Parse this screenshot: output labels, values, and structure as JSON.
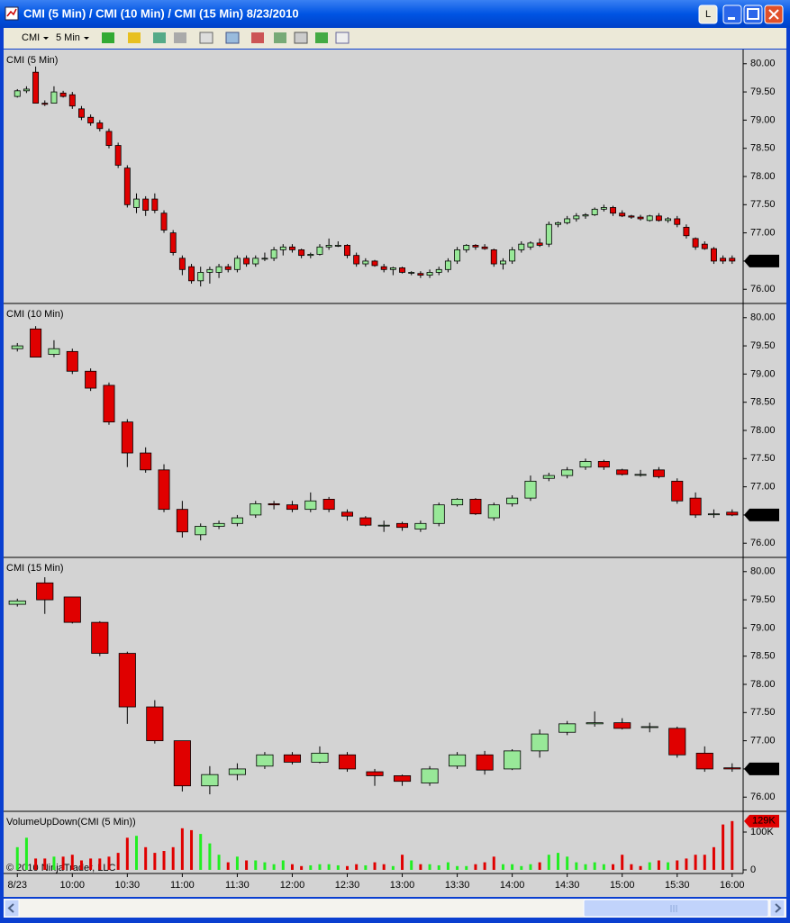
{
  "window": {
    "title": "CMI (5 Min) / CMI (10 Min) / CMI (15 Min)  8/23/2010",
    "button": "L"
  },
  "toolbar": {
    "instrument": "CMI",
    "interval": "5 Min"
  },
  "time_axis": {
    "xlim": [
      "9:23",
      "16:06"
    ],
    "xticks": [
      {
        "value": "9:30",
        "label": "8/23"
      },
      "10:00",
      "10:30",
      "11:00",
      "11:30",
      "12:00",
      "12:30",
      "13:00",
      "13:30",
      "14:00",
      "14:30",
      "15:00",
      "15:30",
      "16:00"
    ]
  },
  "copyright": "© 2010 NinjaTrader, LLC",
  "chart_data": [
    {
      "type": "candlestick",
      "title": "CMI (5 Min)",
      "up_color": "#98e898",
      "down_color": "#e00000",
      "ylim": [
        75.78,
        80.22
      ],
      "yticks": [
        {
          "value": 76,
          "label": "76.00"
        },
        {
          "value": 76.5,
          "label": "76.50"
        },
        {
          "value": 77,
          "label": "77.00"
        },
        {
          "value": 77.5,
          "label": "77.50"
        },
        {
          "value": 78,
          "label": "78.00"
        },
        {
          "value": 78.5,
          "label": "78.50"
        },
        {
          "value": 79,
          "label": "79.00"
        },
        {
          "value": 79.5,
          "label": "79.50"
        },
        {
          "value": 80,
          "label": "80.00"
        }
      ],
      "last_value": {
        "value": 76.5,
        "label": "76.50"
      },
      "x": [
        "9:30",
        "9:35",
        "9:40",
        "9:45",
        "9:50",
        "9:55",
        "10:00",
        "10:05",
        "10:10",
        "10:15",
        "10:20",
        "10:25",
        "10:30",
        "10:35",
        "10:40",
        "10:45",
        "10:50",
        "10:55",
        "11:00",
        "11:05",
        "11:10",
        "11:15",
        "11:20",
        "11:25",
        "11:30",
        "11:35",
        "11:40",
        "11:45",
        "11:50",
        "11:55",
        "12:00",
        "12:05",
        "12:10",
        "12:15",
        "12:20",
        "12:25",
        "12:30",
        "12:35",
        "12:40",
        "12:45",
        "12:50",
        "12:55",
        "13:00",
        "13:05",
        "13:10",
        "13:15",
        "13:20",
        "13:25",
        "13:30",
        "13:35",
        "13:40",
        "13:45",
        "13:50",
        "13:55",
        "14:00",
        "14:05",
        "14:10",
        "14:15",
        "14:20",
        "14:25",
        "14:30",
        "14:35",
        "14:40",
        "14:45",
        "14:50",
        "14:55",
        "15:00",
        "15:05",
        "15:10",
        "15:15",
        "15:20",
        "15:25",
        "15:30",
        "15:35",
        "15:40",
        "15:45",
        "15:50",
        "15:55",
        "16:00"
      ],
      "open": [
        79.42,
        79.52,
        79.85,
        79.3,
        79.3,
        79.48,
        79.45,
        79.2,
        79.05,
        78.95,
        78.8,
        78.55,
        78.15,
        77.45,
        77.6,
        77.6,
        77.35,
        77.0,
        76.55,
        76.4,
        76.15,
        76.3,
        76.3,
        76.4,
        76.35,
        76.55,
        76.45,
        76.55,
        76.55,
        76.7,
        76.75,
        76.7,
        76.6,
        76.62,
        76.75,
        76.78,
        76.78,
        76.6,
        76.45,
        76.5,
        76.4,
        76.35,
        76.38,
        76.3,
        76.28,
        76.25,
        76.3,
        76.35,
        76.5,
        76.7,
        76.78,
        76.75,
        76.7,
        76.45,
        76.5,
        76.7,
        76.75,
        76.82,
        76.8,
        77.15,
        77.18,
        77.25,
        77.3,
        77.32,
        77.42,
        77.45,
        77.35,
        77.3,
        77.28,
        77.22,
        77.3,
        77.22,
        77.25,
        77.1,
        76.9,
        76.8,
        76.72,
        76.55,
        76.55
      ],
      "high": [
        79.55,
        79.6,
        79.95,
        79.35,
        79.6,
        79.52,
        79.5,
        79.25,
        79.1,
        79.0,
        78.85,
        78.6,
        78.2,
        77.7,
        77.65,
        77.7,
        77.4,
        77.05,
        76.6,
        76.45,
        76.4,
        76.4,
        76.45,
        76.45,
        76.6,
        76.6,
        76.6,
        76.65,
        76.75,
        76.8,
        76.8,
        76.72,
        76.65,
        76.8,
        76.9,
        76.85,
        76.8,
        76.65,
        76.55,
        76.52,
        76.45,
        76.4,
        76.4,
        76.32,
        76.32,
        76.35,
        76.4,
        76.55,
        76.75,
        76.8,
        76.8,
        76.8,
        76.72,
        76.55,
        76.75,
        76.85,
        76.85,
        76.9,
        77.2,
        77.2,
        77.3,
        77.35,
        77.35,
        77.45,
        77.5,
        77.48,
        77.4,
        77.32,
        77.32,
        77.32,
        77.35,
        77.28,
        77.3,
        77.15,
        76.92,
        76.85,
        76.75,
        76.6,
        76.6
      ],
      "low": [
        79.4,
        79.48,
        79.3,
        79.25,
        79.3,
        79.4,
        79.2,
        79.0,
        78.9,
        78.8,
        78.5,
        78.15,
        77.45,
        77.35,
        77.3,
        77.35,
        77.0,
        76.6,
        76.25,
        76.1,
        76.05,
        76.1,
        76.2,
        76.3,
        76.3,
        76.4,
        76.4,
        76.5,
        76.5,
        76.6,
        76.65,
        76.55,
        76.55,
        76.6,
        76.7,
        76.75,
        76.55,
        76.4,
        76.4,
        76.4,
        76.3,
        76.25,
        76.28,
        76.25,
        76.2,
        76.2,
        76.25,
        76.3,
        76.45,
        76.65,
        76.7,
        76.7,
        76.4,
        76.35,
        76.45,
        76.65,
        76.7,
        76.75,
        76.75,
        77.1,
        77.15,
        77.2,
        77.25,
        77.3,
        77.38,
        77.3,
        77.28,
        77.25,
        77.22,
        77.2,
        77.2,
        77.18,
        77.1,
        76.9,
        76.7,
        76.7,
        76.45,
        76.45,
        76.45
      ],
      "close": [
        79.52,
        79.55,
        79.3,
        79.28,
        79.5,
        79.42,
        79.25,
        79.05,
        78.95,
        78.85,
        78.55,
        78.2,
        77.5,
        77.6,
        77.4,
        77.4,
        77.05,
        76.65,
        76.35,
        76.15,
        76.3,
        76.35,
        76.4,
        76.35,
        76.55,
        76.45,
        76.55,
        76.55,
        76.7,
        76.75,
        76.7,
        76.6,
        76.62,
        76.75,
        76.78,
        76.78,
        76.6,
        76.45,
        76.5,
        76.42,
        76.35,
        76.38,
        76.3,
        76.3,
        76.25,
        76.3,
        76.35,
        76.5,
        76.7,
        76.78,
        76.75,
        76.72,
        76.45,
        76.5,
        76.7,
        76.8,
        76.82,
        76.78,
        77.15,
        77.18,
        77.25,
        77.3,
        77.32,
        77.42,
        77.45,
        77.35,
        77.3,
        77.28,
        77.25,
        77.3,
        77.22,
        77.25,
        77.15,
        76.95,
        76.75,
        76.72,
        76.5,
        76.5,
        76.5
      ]
    },
    {
      "type": "candlestick",
      "title": "CMI (10 Min)",
      "up_color": "#98e898",
      "down_color": "#e00000",
      "ylim": [
        75.78,
        80.22
      ],
      "yticks": [
        {
          "value": 76,
          "label": "76.00"
        },
        {
          "value": 76.5,
          "label": "76.50"
        },
        {
          "value": 77,
          "label": "77.00"
        },
        {
          "value": 77.5,
          "label": "77.50"
        },
        {
          "value": 78,
          "label": "78.00"
        },
        {
          "value": 78.5,
          "label": "78.50"
        },
        {
          "value": 79,
          "label": "79.00"
        },
        {
          "value": 79.5,
          "label": "79.50"
        },
        {
          "value": 80,
          "label": "80.00"
        }
      ],
      "last_value": {
        "value": 76.5,
        "label": "76.50"
      },
      "x": [
        "9:30",
        "9:40",
        "9:50",
        "10:00",
        "10:10",
        "10:20",
        "10:30",
        "10:40",
        "10:50",
        "11:00",
        "11:10",
        "11:20",
        "11:30",
        "11:40",
        "11:50",
        "12:00",
        "12:10",
        "12:20",
        "12:30",
        "12:40",
        "12:50",
        "13:00",
        "13:10",
        "13:20",
        "13:30",
        "13:40",
        "13:50",
        "14:00",
        "14:10",
        "14:20",
        "14:30",
        "14:40",
        "14:50",
        "15:00",
        "15:10",
        "15:20",
        "15:30",
        "15:40",
        "15:50",
        "16:00"
      ],
      "open": [
        79.45,
        79.8,
        79.35,
        79.4,
        79.05,
        78.8,
        78.15,
        77.6,
        77.3,
        76.6,
        76.15,
        76.3,
        76.35,
        76.5,
        76.7,
        76.68,
        76.6,
        76.78,
        76.55,
        76.45,
        76.32,
        76.35,
        76.25,
        76.35,
        76.68,
        76.78,
        76.45,
        76.7,
        76.8,
        77.15,
        77.2,
        77.35,
        77.45,
        77.3,
        77.22,
        77.3,
        77.1,
        76.8,
        76.52,
        76.55
      ],
      "high": [
        79.55,
        79.85,
        79.6,
        79.45,
        79.1,
        78.85,
        78.2,
        77.7,
        77.4,
        76.75,
        76.35,
        76.4,
        76.5,
        76.75,
        76.75,
        76.75,
        76.9,
        76.82,
        76.6,
        76.48,
        76.4,
        76.38,
        76.4,
        76.72,
        76.8,
        76.8,
        76.72,
        76.85,
        77.2,
        77.25,
        77.35,
        77.5,
        77.48,
        77.32,
        77.3,
        77.35,
        77.15,
        76.9,
        76.6,
        76.6
      ],
      "low": [
        79.4,
        79.3,
        79.3,
        79.0,
        78.7,
        78.1,
        77.35,
        77.25,
        76.55,
        76.1,
        76.05,
        76.25,
        76.3,
        76.45,
        76.6,
        76.55,
        76.55,
        76.55,
        76.4,
        76.3,
        76.2,
        76.22,
        76.2,
        76.3,
        76.65,
        76.5,
        76.4,
        76.65,
        76.75,
        77.1,
        77.15,
        77.3,
        77.3,
        77.2,
        77.18,
        77.15,
        76.7,
        76.45,
        76.45,
        76.48
      ],
      "close": [
        79.5,
        79.3,
        79.45,
        79.05,
        78.75,
        78.15,
        77.6,
        77.3,
        76.6,
        76.2,
        76.3,
        76.35,
        76.45,
        76.7,
        76.68,
        76.6,
        76.75,
        76.6,
        76.48,
        76.32,
        76.32,
        76.28,
        76.35,
        76.68,
        76.78,
        76.52,
        76.68,
        76.8,
        77.1,
        77.2,
        77.3,
        77.45,
        77.35,
        77.22,
        77.22,
        77.18,
        76.75,
        76.5,
        76.52,
        76.5
      ]
    },
    {
      "type": "candlestick",
      "title": "CMI (15 Min)",
      "up_color": "#98e898",
      "down_color": "#e00000",
      "ylim": [
        75.78,
        80.22
      ],
      "yticks": [
        {
          "value": 76,
          "label": "76.00"
        },
        {
          "value": 76.5,
          "label": "76.50"
        },
        {
          "value": 77,
          "label": "77.00"
        },
        {
          "value": 77.5,
          "label": "77.50"
        },
        {
          "value": 78,
          "label": "78.00"
        },
        {
          "value": 78.5,
          "label": "78.50"
        },
        {
          "value": 79,
          "label": "79.00"
        },
        {
          "value": 79.5,
          "label": "79.50"
        },
        {
          "value": 80,
          "label": "80.00"
        }
      ],
      "last_value": {
        "value": 76.5,
        "label": "76.50"
      },
      "x": [
        "9:30",
        "9:45",
        "10:00",
        "10:15",
        "10:30",
        "10:45",
        "11:00",
        "11:15",
        "11:30",
        "11:45",
        "12:00",
        "12:15",
        "12:30",
        "12:45",
        "13:00",
        "13:15",
        "13:30",
        "13:45",
        "14:00",
        "14:15",
        "14:30",
        "14:45",
        "15:00",
        "15:15",
        "15:30",
        "15:45",
        "16:00"
      ],
      "open": [
        79.42,
        79.8,
        79.55,
        79.1,
        78.55,
        77.6,
        77.0,
        76.2,
        76.4,
        76.55,
        76.75,
        76.62,
        76.75,
        76.45,
        76.38,
        76.25,
        76.55,
        76.75,
        76.5,
        76.82,
        77.15,
        77.3,
        77.32,
        77.25,
        77.22,
        76.78,
        76.52
      ],
      "high": [
        79.52,
        79.9,
        79.55,
        79.12,
        78.58,
        77.72,
        77.0,
        76.55,
        76.6,
        76.8,
        76.8,
        76.9,
        76.8,
        76.5,
        76.4,
        76.55,
        76.8,
        76.82,
        76.85,
        77.2,
        77.35,
        77.52,
        77.4,
        77.32,
        77.25,
        76.9,
        76.6
      ],
      "low": [
        79.38,
        79.25,
        79.08,
        78.5,
        77.3,
        76.95,
        76.1,
        76.05,
        76.3,
        76.5,
        76.58,
        76.6,
        76.45,
        76.2,
        76.2,
        76.2,
        76.5,
        76.4,
        76.48,
        76.7,
        77.1,
        77.25,
        77.2,
        77.15,
        76.7,
        76.45,
        76.45
      ],
      "close": [
        79.48,
        79.5,
        79.1,
        78.55,
        77.6,
        77.0,
        76.2,
        76.4,
        76.5,
        76.75,
        76.62,
        76.78,
        76.5,
        76.38,
        76.28,
        76.5,
        76.75,
        76.48,
        76.82,
        77.12,
        77.3,
        77.32,
        77.22,
        77.25,
        76.75,
        76.5,
        76.5
      ]
    },
    {
      "type": "volume",
      "title": "VolumeUpDown(CMI (5 Min))",
      "up_color": "#22ee22",
      "down_color": "#e00000",
      "ylim": [
        0,
        150000
      ],
      "yticks": [
        0,
        {
          "value": 100000,
          "label": "100K"
        }
      ],
      "last_value": {
        "value": 129000,
        "label": "129K"
      },
      "x": [
        "9:30",
        "9:35",
        "9:40",
        "9:45",
        "9:50",
        "9:55",
        "10:00",
        "10:05",
        "10:10",
        "10:15",
        "10:20",
        "10:25",
        "10:30",
        "10:35",
        "10:40",
        "10:45",
        "10:50",
        "10:55",
        "11:00",
        "11:05",
        "11:10",
        "11:15",
        "11:20",
        "11:25",
        "11:30",
        "11:35",
        "11:40",
        "11:45",
        "11:50",
        "11:55",
        "12:00",
        "12:05",
        "12:10",
        "12:15",
        "12:20",
        "12:25",
        "12:30",
        "12:35",
        "12:40",
        "12:45",
        "12:50",
        "12:55",
        "13:00",
        "13:05",
        "13:10",
        "13:15",
        "13:20",
        "13:25",
        "13:30",
        "13:35",
        "13:40",
        "13:45",
        "13:50",
        "13:55",
        "14:00",
        "14:05",
        "14:10",
        "14:15",
        "14:20",
        "14:25",
        "14:30",
        "14:35",
        "14:40",
        "14:45",
        "14:50",
        "14:55",
        "15:00",
        "15:05",
        "15:10",
        "15:15",
        "15:20",
        "15:25",
        "15:30",
        "15:35",
        "15:40",
        "15:45",
        "15:50",
        "15:55",
        "16:00"
      ],
      "values": [
        60000,
        85000,
        30000,
        30000,
        35000,
        35000,
        40000,
        25000,
        30000,
        30000,
        35000,
        45000,
        85000,
        90000,
        60000,
        45000,
        50000,
        60000,
        110000,
        105000,
        95000,
        70000,
        40000,
        20000,
        35000,
        25000,
        25000,
        20000,
        15000,
        25000,
        15000,
        10000,
        12000,
        15000,
        15000,
        12000,
        10000,
        15000,
        12000,
        20000,
        15000,
        10000,
        40000,
        25000,
        15000,
        15000,
        12000,
        20000,
        10000,
        10000,
        15000,
        20000,
        35000,
        15000,
        15000,
        10000,
        15000,
        20000,
        40000,
        45000,
        35000,
        20000,
        15000,
        20000,
        15000,
        15000,
        40000,
        15000,
        10000,
        20000,
        25000,
        20000,
        25000,
        30000,
        40000,
        40000,
        60000,
        120000,
        129000
      ]
    }
  ]
}
